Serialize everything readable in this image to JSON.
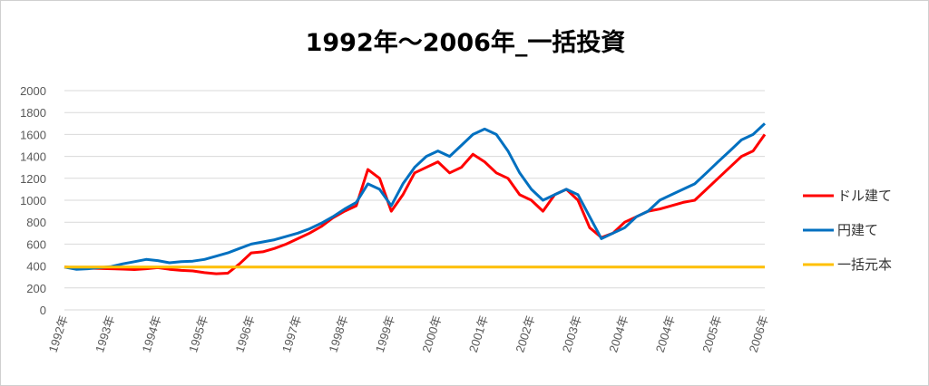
{
  "chart_data": {
    "type": "line",
    "title": "1992年～2006年_一括投資",
    "xlabel": "",
    "ylabel": "",
    "ylim": [
      0,
      2000
    ],
    "y_ticks": [
      0,
      200,
      400,
      600,
      800,
      1000,
      1200,
      1400,
      1600,
      1800,
      2000
    ],
    "x_tick_labels": [
      "1992年",
      "1993年",
      "1994年",
      "1995年",
      "1996年",
      "1997年",
      "1998年",
      "1999年",
      "2000年",
      "2001年",
      "2002年",
      "2003年",
      "2004年",
      "2004年",
      "2005年",
      "2006年"
    ],
    "grid": "horizontal",
    "legend_position": "right",
    "series": [
      {
        "name": "ドル建て",
        "color": "#ff0000",
        "x": [
          0,
          0.25,
          0.5,
          0.75,
          1,
          1.25,
          1.5,
          1.75,
          2,
          2.25,
          2.5,
          2.75,
          3,
          3.25,
          3.5,
          3.75,
          4,
          4.25,
          4.5,
          4.75,
          5,
          5.25,
          5.5,
          5.75,
          6,
          6.25,
          6.5,
          6.75,
          7,
          7.25,
          7.5,
          7.75,
          8,
          8.25,
          8.5,
          8.75,
          9,
          9.25,
          9.5,
          9.75,
          10,
          10.25,
          10.5,
          10.75,
          11,
          11.25,
          11.5,
          11.75,
          12,
          12.25,
          12.5,
          12.75,
          13,
          13.25,
          13.5,
          13.75,
          14,
          14.25,
          14.5,
          14.75,
          15
        ],
        "values": [
          390,
          385,
          380,
          378,
          375,
          372,
          368,
          375,
          385,
          370,
          360,
          355,
          340,
          330,
          335,
          420,
          520,
          530,
          560,
          600,
          650,
          700,
          760,
          840,
          900,
          950,
          1280,
          1200,
          900,
          1050,
          1250,
          1300,
          1350,
          1250,
          1300,
          1420,
          1350,
          1250,
          1200,
          1050,
          1000,
          900,
          1050,
          1100,
          1000,
          750,
          660,
          700,
          800,
          850,
          900,
          920,
          950,
          980,
          1000,
          1100,
          1200,
          1300,
          1400,
          1450,
          1600
        ]
      },
      {
        "name": "円建て",
        "color": "#0070c0",
        "x": [
          0,
          0.25,
          0.5,
          0.75,
          1,
          1.25,
          1.5,
          1.75,
          2,
          2.25,
          2.5,
          2.75,
          3,
          3.25,
          3.5,
          3.75,
          4,
          4.25,
          4.5,
          4.75,
          5,
          5.25,
          5.5,
          5.75,
          6,
          6.25,
          6.5,
          6.75,
          7,
          7.25,
          7.5,
          7.75,
          8,
          8.25,
          8.5,
          8.75,
          9,
          9.25,
          9.5,
          9.75,
          10,
          10.25,
          10.5,
          10.75,
          11,
          11.25,
          11.5,
          11.75,
          12,
          12.25,
          12.5,
          12.75,
          13,
          13.25,
          13.5,
          13.75,
          14,
          14.25,
          14.5,
          14.75,
          15
        ],
        "values": [
          390,
          370,
          375,
          385,
          395,
          420,
          440,
          460,
          450,
          430,
          440,
          445,
          460,
          490,
          520,
          560,
          600,
          620,
          640,
          670,
          700,
          740,
          790,
          850,
          920,
          980,
          1150,
          1100,
          950,
          1150,
          1300,
          1400,
          1450,
          1400,
          1500,
          1600,
          1650,
          1600,
          1450,
          1250,
          1100,
          1000,
          1050,
          1100,
          1050,
          850,
          650,
          700,
          750,
          850,
          900,
          1000,
          1050,
          1100,
          1150,
          1250,
          1350,
          1450,
          1550,
          1600,
          1700
        ]
      },
      {
        "name": "一括元本",
        "color": "#ffc000",
        "x": [
          0,
          15
        ],
        "values": [
          390,
          390
        ]
      }
    ]
  }
}
